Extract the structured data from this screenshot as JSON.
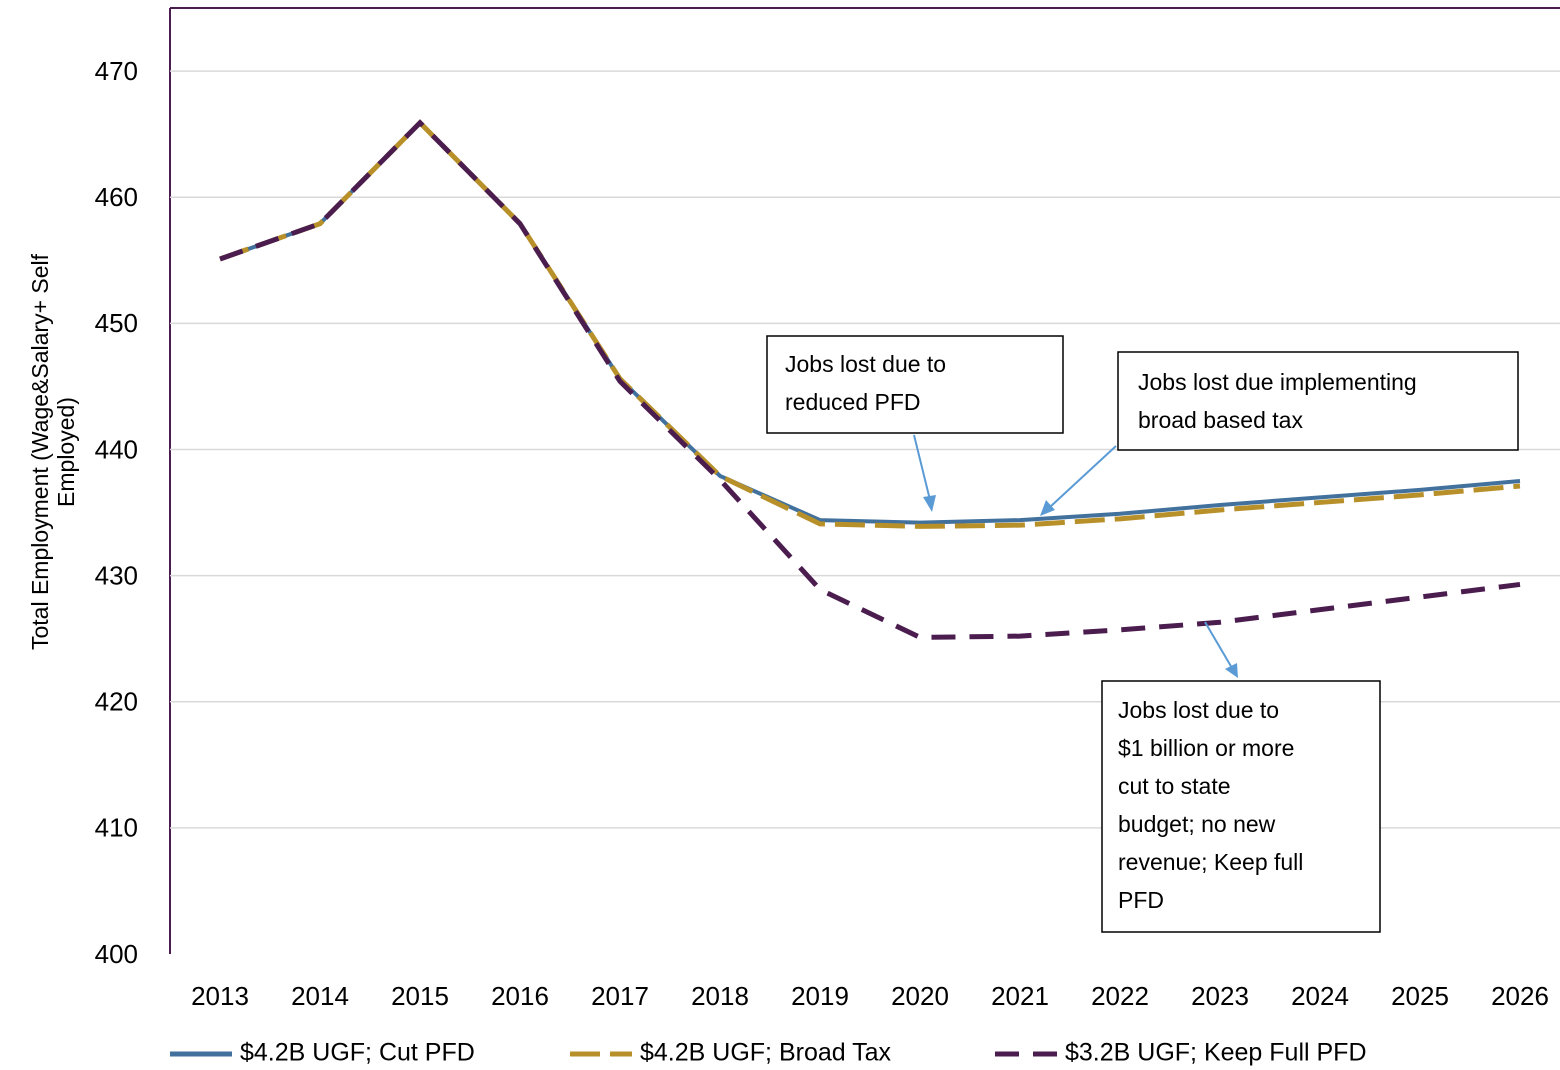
{
  "chart_data": {
    "type": "line",
    "y_label": [
      "Total Employment (Wage&Salary+ Self",
      "Employed)"
    ],
    "categories": [
      "2013",
      "2014",
      "2015",
      "2016",
      "2017",
      "2018",
      "2019",
      "2020",
      "2021",
      "2022",
      "2023",
      "2024",
      "2025",
      "2026"
    ],
    "series": [
      {
        "name": "$4.2B UGF; Cut PFD",
        "color": "#41719c",
        "values": [
          455.1,
          457.9,
          465.9,
          457.9,
          445.6,
          437.9,
          434.4,
          434.2,
          434.4,
          434.9,
          435.6,
          436.2,
          436.8,
          437.5
        ]
      },
      {
        "name": "$4.2B UGF; Broad Tax",
        "color": "#b8902a",
        "values": [
          455.1,
          457.9,
          465.9,
          457.9,
          445.6,
          437.9,
          434.1,
          433.9,
          434.0,
          434.5,
          435.2,
          435.8,
          436.4,
          437.1
        ]
      },
      {
        "name": "$3.2B UGF; Keep Full PFD",
        "color": "#4b1d4f",
        "values": [
          455.1,
          457.9,
          465.9,
          457.9,
          445.4,
          437.6,
          428.9,
          425.1,
          425.2,
          425.7,
          426.3,
          427.3,
          428.3,
          429.3
        ]
      }
    ],
    "ylim": [
      400,
      475
    ],
    "yticks": [
      400,
      410,
      420,
      430,
      440,
      450,
      460,
      470
    ],
    "grid": true,
    "annotations": [
      [
        "Jobs lost due to",
        "reduced PFD"
      ],
      [
        "Jobs lost due implementing",
        "broad based tax"
      ],
      [
        "Jobs lost due to",
        "$1 billion or more",
        "cut to state",
        "budget; no new",
        "revenue; Keep full",
        "PFD"
      ]
    ]
  }
}
